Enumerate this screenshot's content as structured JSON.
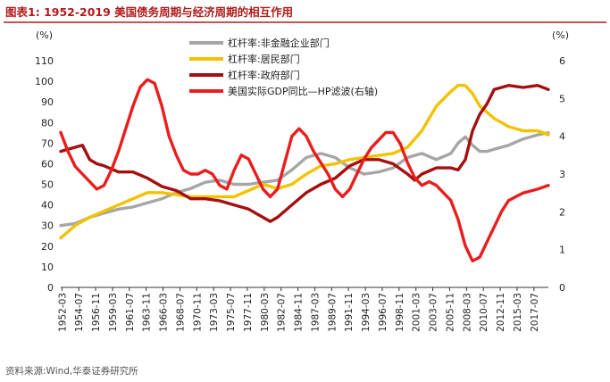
{
  "header": {
    "title": "图表1:  1952-2019 美国债务周期与经济周期的相互作用",
    "source": "资料来源:Wind,华泰证券研究所"
  },
  "chart_data": {
    "type": "line",
    "left_unit": "(%)",
    "right_unit": "(%)",
    "ylim_left": [
      0,
      110
    ],
    "yticks_left": [
      0,
      10,
      20,
      30,
      40,
      50,
      60,
      70,
      80,
      90,
      100,
      110
    ],
    "ylim_right": [
      0,
      6
    ],
    "yticks_right": [
      0,
      1,
      2,
      3,
      4,
      5,
      6
    ],
    "xlim": [
      1952.0,
      2019.5
    ],
    "xtick_labels": [
      "1952-03",
      "1954-07",
      "1956-11",
      "1959-03",
      "1961-07",
      "1963-11",
      "1966-03",
      "1968-07",
      "1970-11",
      "1973-03",
      "1975-07",
      "1977-11",
      "1980-03",
      "1982-07",
      "1984-11",
      "1987-03",
      "1989-07",
      "1991-11",
      "1994-03",
      "1996-07",
      "1998-11",
      "2001-03",
      "2003-07",
      "2005-11",
      "2008-03",
      "2010-07",
      "2012-11",
      "2015-03",
      "2017-07"
    ],
    "xtick_values": [
      1952.17,
      1954.5,
      1956.83,
      1959.17,
      1961.5,
      1963.83,
      1966.17,
      1968.5,
      1970.83,
      1973.17,
      1975.5,
      1977.83,
      1980.17,
      1982.5,
      1984.83,
      1987.17,
      1989.5,
      1991.83,
      1994.17,
      1996.5,
      1998.83,
      2001.17,
      2003.5,
      2005.83,
      2008.17,
      2010.5,
      2012.83,
      2015.17,
      2017.5
    ],
    "legend_position": "top-left",
    "series": [
      {
        "name": "杠杆率:非金融企业部门",
        "color": "#a6a6a6",
        "axis": "left",
        "x": [
          1952,
          1954,
          1956,
          1958,
          1960,
          1962,
          1964,
          1966,
          1968,
          1970,
          1972,
          1974,
          1976,
          1978,
          1980,
          1982,
          1984,
          1986,
          1988,
          1990,
          1992,
          1994,
          1996,
          1998,
          2000,
          2002,
          2004,
          2006,
          2007,
          2008,
          2009,
          2010,
          2011,
          2012,
          2014,
          2016,
          2018,
          2019.5
        ],
        "y": [
          30,
          31,
          34,
          36,
          38,
          39,
          41,
          43,
          46,
          48,
          51,
          52,
          50,
          50,
          51,
          52,
          57,
          63,
          65,
          63,
          58,
          55,
          56,
          58,
          63,
          65,
          62,
          65,
          70,
          73,
          69,
          66,
          66,
          67,
          69,
          72,
          74,
          75
        ]
      },
      {
        "name": "杠杆率:居民部门",
        "color": "#f2c200",
        "axis": "left",
        "x": [
          1952,
          1954,
          1956,
          1958,
          1960,
          1962,
          1964,
          1966,
          1968,
          1970,
          1972,
          1974,
          1976,
          1978,
          1980,
          1982,
          1984,
          1986,
          1988,
          1990,
          1992,
          1994,
          1996,
          1998,
          2000,
          2002,
          2004,
          2006,
          2007,
          2008,
          2009,
          2010,
          2012,
          2014,
          2016,
          2018,
          2019.5
        ],
        "y": [
          24,
          30,
          34,
          37,
          40,
          43,
          46,
          46,
          45,
          44,
          44,
          44,
          44,
          47,
          50,
          48,
          50,
          55,
          59,
          60,
          62,
          63,
          64,
          65,
          68,
          76,
          88,
          95,
          98,
          98,
          94,
          88,
          82,
          78,
          76,
          76,
          74
        ]
      },
      {
        "name": "杠杆率:政府部门",
        "color": "#a50f0f",
        "axis": "left",
        "x": [
          1952,
          1953,
          1954,
          1955,
          1956,
          1957,
          1958,
          1960,
          1962,
          1964,
          1966,
          1968,
          1970,
          1972,
          1974,
          1976,
          1978,
          1980,
          1981,
          1982,
          1984,
          1986,
          1988,
          1990,
          1992,
          1994,
          1996,
          1998,
          2000,
          2001,
          2002,
          2004,
          2006,
          2007,
          2008,
          2009,
          2010,
          2011,
          2012,
          2013,
          2014,
          2016,
          2018,
          2019.5
        ],
        "y": [
          66,
          67,
          68,
          69,
          62,
          60,
          59,
          56,
          56,
          53,
          49,
          47,
          43,
          43,
          42,
          40,
          38,
          34,
          32,
          34,
          40,
          46,
          50,
          53,
          59,
          62,
          62,
          60,
          55,
          52,
          55,
          58,
          58,
          57,
          62,
          76,
          84,
          89,
          96,
          97,
          98,
          97,
          98,
          96
        ]
      },
      {
        "name": "美国实际GDP同比—HP滤波(右轴)",
        "color": "#ea1d1d",
        "axis": "right",
        "x": [
          1952,
          1953,
          1954,
          1955,
          1956,
          1957,
          1958,
          1959,
          1960,
          1961,
          1962,
          1963,
          1964,
          1965,
          1966,
          1967,
          1968,
          1969,
          1970,
          1971,
          1972,
          1973,
          1974,
          1975,
          1976,
          1977,
          1978,
          1979,
          1980,
          1981,
          1982,
          1983,
          1984,
          1985,
          1986,
          1987,
          1988,
          1989,
          1990,
          1991,
          1992,
          1993,
          1994,
          1995,
          1996,
          1997,
          1998,
          1999,
          2000,
          2001,
          2002,
          2003,
          2004,
          2005,
          2006,
          2007,
          2008,
          2009,
          2010,
          2011,
          2012,
          2013,
          2014,
          2015,
          2016,
          2017,
          2018,
          2019.5
        ],
        "y": [
          4.1,
          3.6,
          3.2,
          3.0,
          2.8,
          2.6,
          2.7,
          3.1,
          3.6,
          4.2,
          4.8,
          5.3,
          5.5,
          5.4,
          4.8,
          4.0,
          3.5,
          3.1,
          3.0,
          3.0,
          3.1,
          3.0,
          2.7,
          2.6,
          3.1,
          3.5,
          3.4,
          3.0,
          2.6,
          2.4,
          2.6,
          3.3,
          4.0,
          4.2,
          4.0,
          3.6,
          3.3,
          3.0,
          2.6,
          2.4,
          2.6,
          3.0,
          3.4,
          3.7,
          3.9,
          4.1,
          4.1,
          3.8,
          3.3,
          2.9,
          2.7,
          2.8,
          2.7,
          2.5,
          2.3,
          1.8,
          1.1,
          0.7,
          0.8,
          1.2,
          1.6,
          2.0,
          2.3,
          2.4,
          2.5,
          2.55,
          2.6,
          2.7
        ]
      }
    ]
  }
}
